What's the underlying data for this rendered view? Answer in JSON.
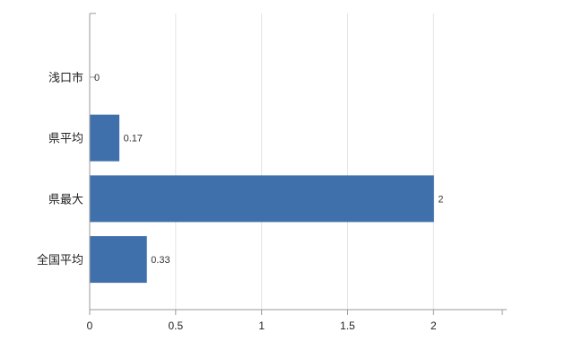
{
  "chart_data": {
    "type": "bar",
    "orientation": "horizontal",
    "title": "",
    "categories": [
      "浅口市",
      "県平均",
      "県最大",
      "全国平均"
    ],
    "values": [
      0,
      0.17,
      2,
      0.33
    ],
    "value_labels": [
      "0",
      "0.17",
      "2",
      "0.33"
    ],
    "x_ticks": [
      0,
      0.5,
      1,
      1.5,
      2
    ],
    "x_tick_labels": [
      "0",
      "0.5",
      "1",
      "1.5",
      "2"
    ],
    "xlim": [
      0,
      2.4
    ],
    "grid": "vertical",
    "legend": "none",
    "colors": {
      "bar": "#4070ab",
      "axis": "#9a9a9a",
      "grid": "#e4e4e4",
      "category_text": "#222222",
      "value_text": "#333333",
      "tick_text": "#222222"
    }
  }
}
